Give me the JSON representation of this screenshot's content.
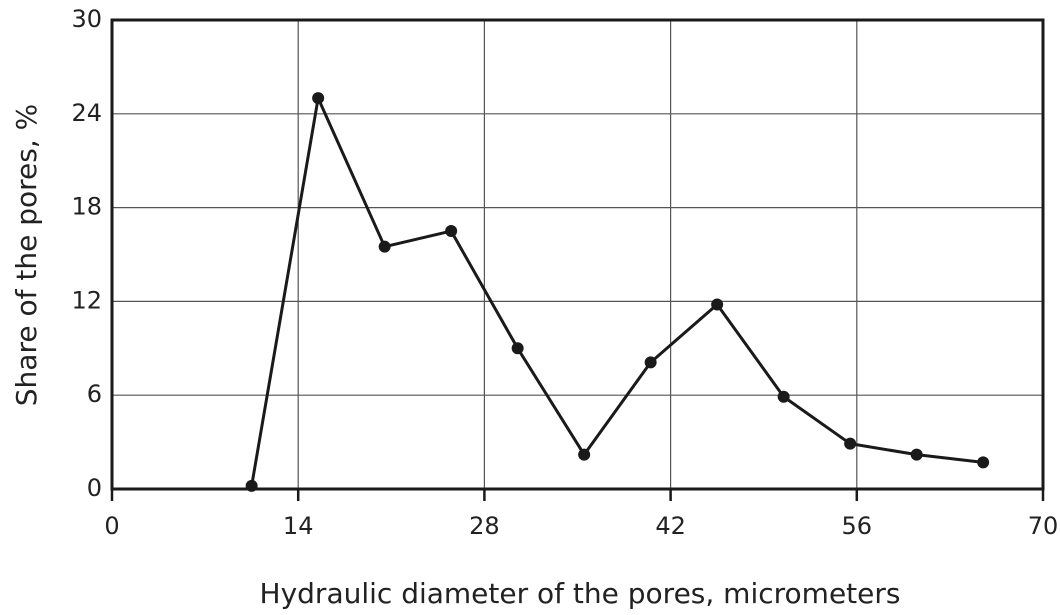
{
  "chart_data": {
    "type": "line",
    "x_label": "Hydraulic diameter of the pores, micrometers",
    "y_label": "Share of the pores, %",
    "x": [
      10.5,
      15.5,
      20.5,
      25.5,
      30.5,
      35.5,
      40.5,
      45.5,
      50.5,
      55.5,
      60.5,
      65.5
    ],
    "series": [
      {
        "name": "Share of the pores",
        "color": "#1a1a1a",
        "values": [
          0.2,
          25,
          15.5,
          16.5,
          9,
          2.2,
          8.1,
          11.8,
          5.9,
          2.9,
          2.2,
          1.7
        ]
      }
    ],
    "xlim": [
      0,
      70
    ],
    "xticks": [
      0,
      14,
      28,
      42,
      56,
      70
    ],
    "ylim": [
      0,
      30
    ],
    "yticks": [
      0,
      6,
      12,
      18,
      24,
      30
    ],
    "grid": true
  }
}
